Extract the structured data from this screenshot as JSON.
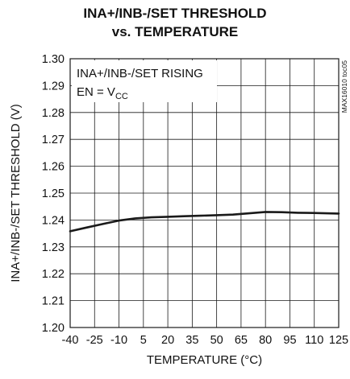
{
  "chart_data": {
    "type": "line",
    "title_line1": "INA+/INB-/SET THRESHOLD",
    "title_line2": "vs. TEMPERATURE",
    "xlabel": "TEMPERATURE (°C)",
    "ylabel": "INA+/INB-/SET THRESHOLD (V)",
    "xlim": [
      -40,
      125
    ],
    "ylim": [
      1.2,
      1.3
    ],
    "x_ticks": [
      -40,
      -25,
      -10,
      5,
      20,
      35,
      50,
      65,
      80,
      95,
      110,
      125
    ],
    "y_ticks": [
      "1.20",
      "1.21",
      "1.22",
      "1.23",
      "1.24",
      "1.25",
      "1.26",
      "1.27",
      "1.28",
      "1.29",
      "1.30"
    ],
    "grid": true,
    "annotation_line1": "INA+/INB-/SET RISING",
    "annotation_line2_prefix": "EN = V",
    "annotation_line2_sub": "CC",
    "figure_id": "MAX16010 toc05",
    "series": [
      {
        "x": [
          -40,
          -30,
          -20,
          -10,
          0,
          10,
          20,
          30,
          40,
          50,
          60,
          70,
          80,
          90,
          100,
          110,
          125
        ],
        "y": [
          1.2358,
          1.2372,
          1.2385,
          1.2398,
          1.2406,
          1.241,
          1.2412,
          1.2414,
          1.2416,
          1.2418,
          1.242,
          1.2425,
          1.243,
          1.2429,
          1.2427,
          1.2426,
          1.2424
        ]
      }
    ],
    "colors": {
      "line": "#1a1a1a",
      "grid": "#1a1a1a"
    }
  }
}
